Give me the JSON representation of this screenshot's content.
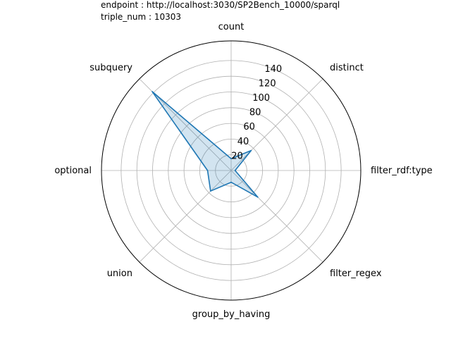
{
  "chart_data": {
    "type": "radar",
    "title_lines": [
      "endpoint : http://localhost:3030/SP2Bench_10000/sparql",
      "triple_num : 10303"
    ],
    "categories": [
      "count",
      "distinct",
      "filter_rdf:type",
      "filter_regex",
      "group_by_having",
      "union",
      "optional",
      "subquery"
    ],
    "values": [
      15,
      36,
      5,
      48,
      15,
      37,
      30,
      142
    ],
    "radial_ticks": [
      20,
      40,
      60,
      80,
      100,
      120,
      140
    ],
    "rlim": [
      0,
      165
    ],
    "grid": true,
    "colors": {
      "line": "#1f77b4",
      "fill": "#1f77b4",
      "grid": "#b0b0b0",
      "spine": "#000000"
    }
  }
}
